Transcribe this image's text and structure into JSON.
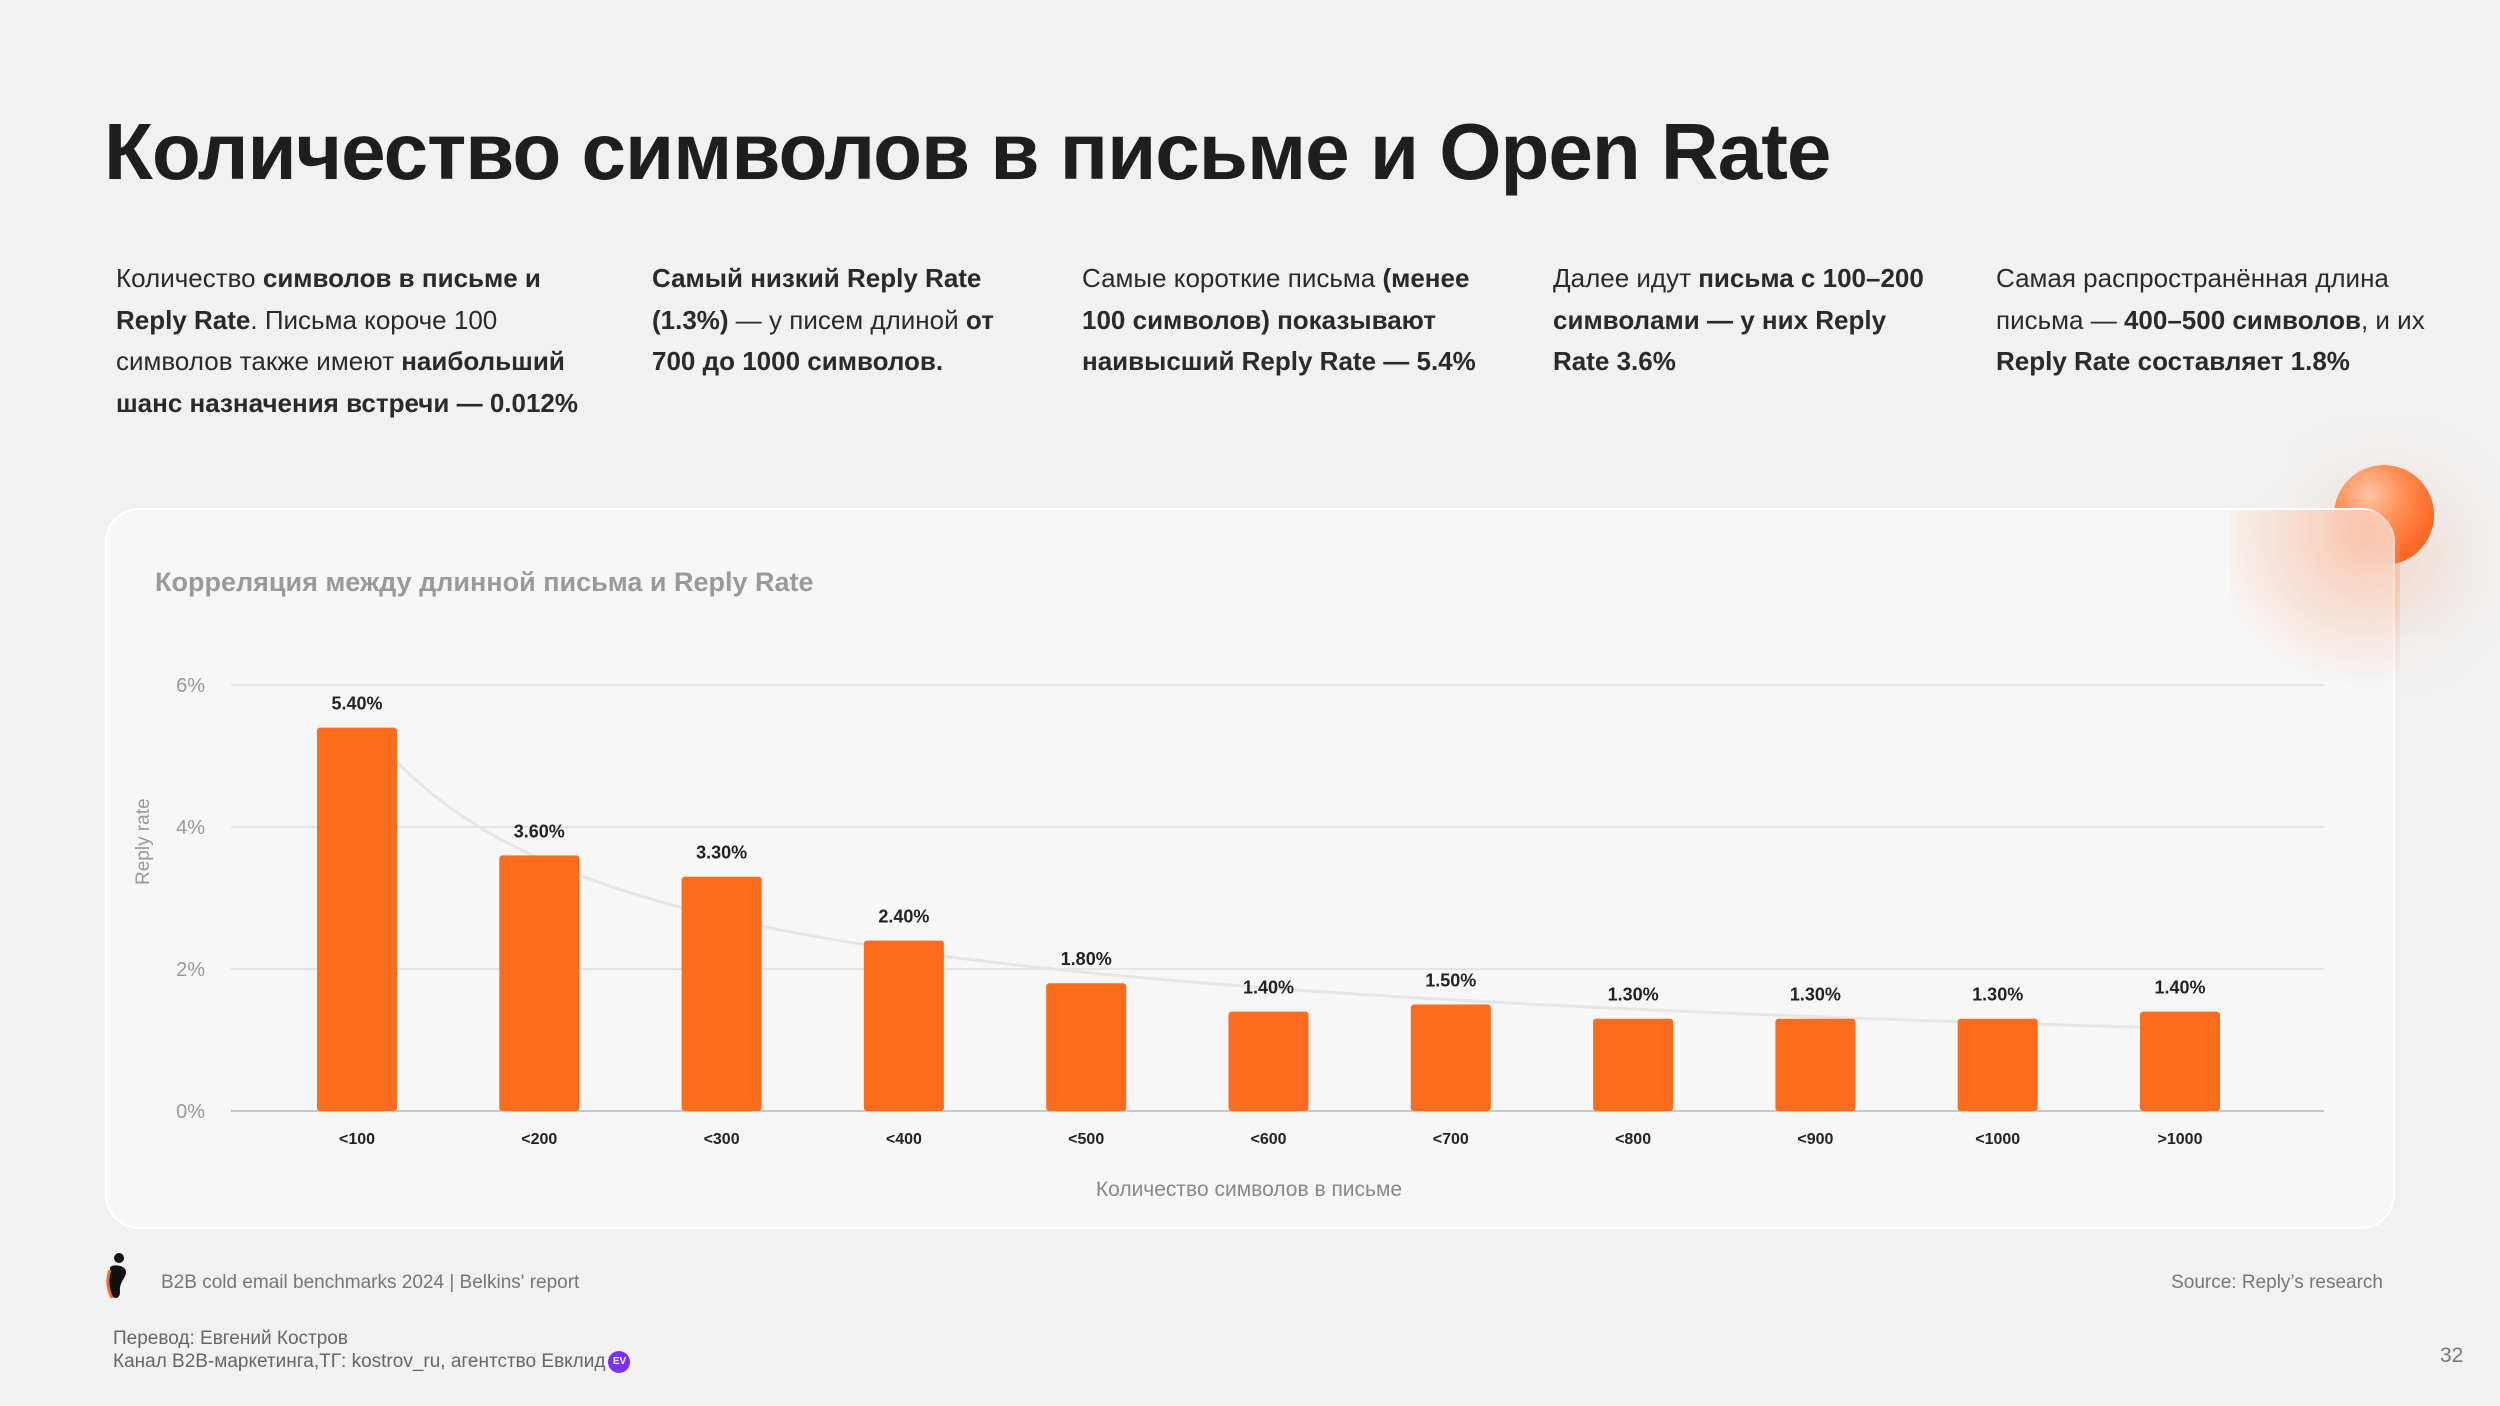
{
  "title": "Количество символов в письме и Open Rate",
  "columns": [
    {
      "parts": [
        [
          "n",
          "Количество "
        ],
        [
          "b",
          "символов в письме и Reply Rate"
        ],
        [
          "n",
          ". Письма короче 100 символов также имеют "
        ],
        [
          "b",
          "наибольший шанс назначения встречи — 0.012%"
        ]
      ]
    },
    {
      "parts": [
        [
          "b",
          "Самый низкий Reply Rate (1.3%)"
        ],
        [
          "n",
          " — у писем длиной "
        ],
        [
          "b",
          "от 700 до 1000 символов."
        ]
      ]
    },
    {
      "parts": [
        [
          "n",
          "Самые короткие письма "
        ],
        [
          "b",
          "(менее 100 символов) показывают наивысший Reply Rate — 5.4%"
        ]
      ]
    },
    {
      "parts": [
        [
          "n",
          "Далее идут "
        ],
        [
          "b",
          "письма с 100–200 символами — у них Reply Rate 3.6%"
        ]
      ]
    },
    {
      "parts": [
        [
          "n",
          "Самая распространённая длина письма — "
        ],
        [
          "b",
          "400–500 символов"
        ],
        [
          "n",
          ", и их "
        ],
        [
          "b",
          "Reply Rate составляет 1.8%"
        ]
      ]
    }
  ],
  "chart_data": {
    "type": "bar",
    "title": "Корреляция между длинной письма и Reply Rate",
    "xlabel": "Количество символов в письме",
    "ylabel": "Reply rate",
    "categories": [
      "<100",
      "<200",
      "<300",
      "<400",
      "<500",
      "<600",
      "<700",
      "<800",
      "<900",
      "<1000",
      ">1000"
    ],
    "values": [
      5.4,
      3.6,
      3.3,
      2.4,
      1.8,
      1.4,
      1.5,
      1.3,
      1.3,
      1.3,
      1.4
    ],
    "data_labels": [
      "5.40%",
      "3.60%",
      "3.30%",
      "2.40%",
      "1.80%",
      "1.40%",
      "1.50%",
      "1.30%",
      "1.30%",
      "1.30%",
      "1.40%"
    ],
    "yticks": [
      0,
      2,
      4,
      6
    ],
    "ytick_labels": [
      "0%",
      "2%",
      "4%",
      "6%"
    ],
    "ylim": [
      0,
      6
    ],
    "grid": true,
    "trendline": true,
    "bar_color": "#fb6c1e"
  },
  "footer": {
    "report": "B2B cold email benchmarks 2024 | Belkins' report",
    "source": "Source: Reply’s research",
    "translation": "Перевод: Евгений Костров",
    "channel": "Канал B2B-маркетинга,ТГ: kostrov_ru, агентство Евклид",
    "ev_badge": "EV",
    "page_number": "32"
  }
}
